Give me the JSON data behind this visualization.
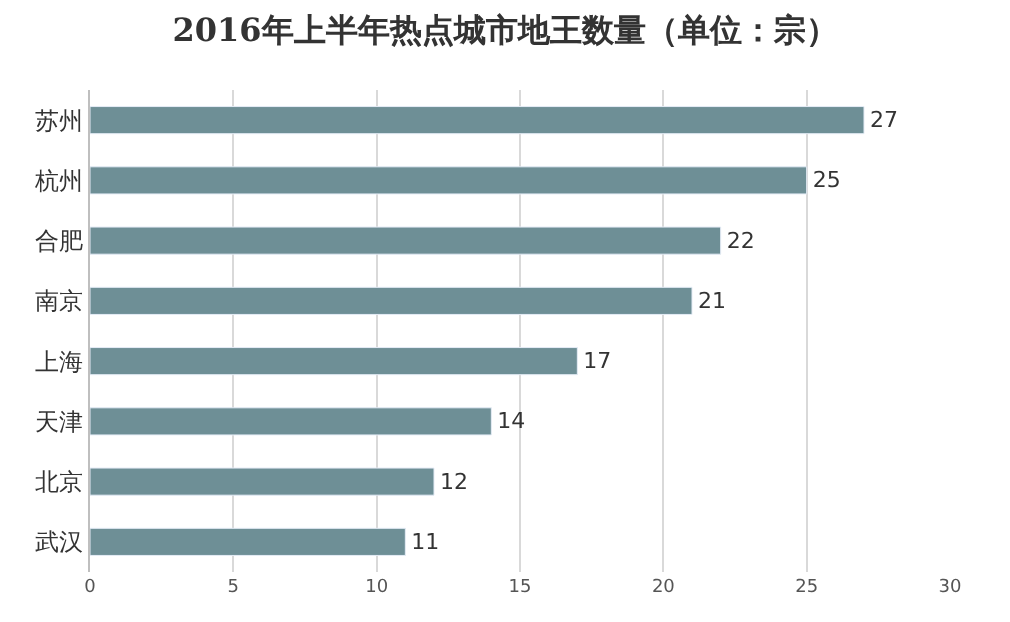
{
  "chart_data": {
    "type": "bar",
    "orientation": "horizontal",
    "title": "2016年上半年热点城市地王数量（单位：宗）",
    "categories": [
      "苏州",
      "杭州",
      "合肥",
      "南京",
      "上海",
      "天津",
      "北京",
      "武汉"
    ],
    "values": [
      27,
      25,
      22,
      21,
      17,
      14,
      12,
      11
    ],
    "color": "#6e8f96",
    "xlim": [
      0,
      30
    ],
    "xticks": [
      0,
      5,
      10,
      15,
      20,
      25,
      30
    ],
    "grid": "x",
    "data_labels": true,
    "legend": false
  }
}
